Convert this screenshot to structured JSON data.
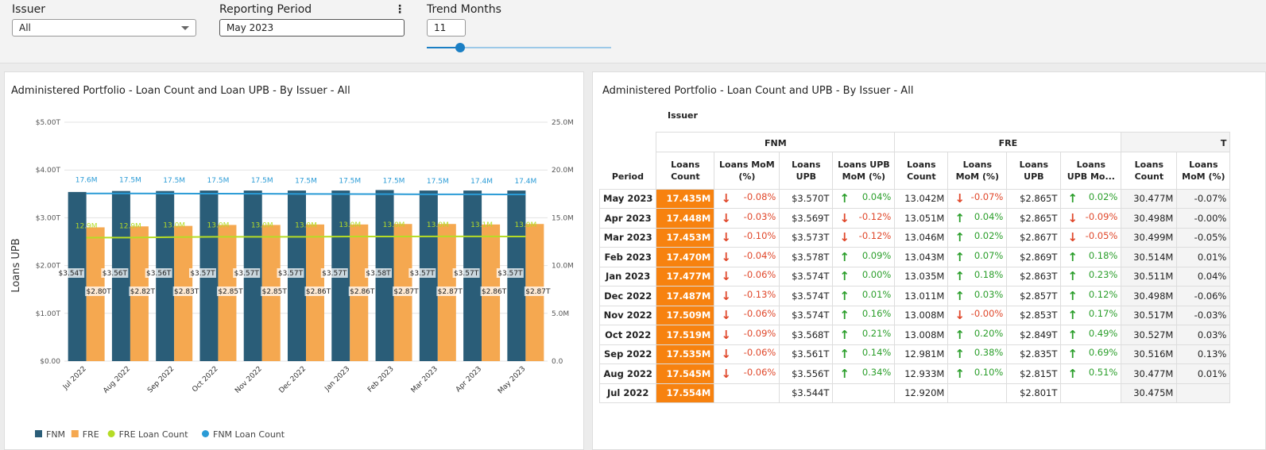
{
  "filters": {
    "issuer": {
      "label": "Issuer",
      "value": "All"
    },
    "period": {
      "label": "Reporting Period",
      "value": "May 2023"
    },
    "trend": {
      "label": "Trend Months",
      "value": "11",
      "slider_fraction": 0.18
    }
  },
  "left_panel": {
    "title": "Administered Portfolio - Loan Count and Loan UPB - By Issuer - All"
  },
  "right_panel": {
    "title": "Administered Portfolio - Loan Count and UPB - By Issuer - All",
    "issuer_label": "Issuer",
    "period_label": "Period",
    "groups": [
      "FNM",
      "FRE",
      "T"
    ],
    "columns": [
      "Loans Count",
      "Loans MoM (%)",
      "Loans UPB",
      "Loans UPB MoM (%)",
      "Loans Count",
      "Loans MoM (%)",
      "Loans UPB",
      "Loans UPB Mo...",
      "Loans Count",
      "Loans MoM (%)"
    ],
    "rows": [
      [
        "May 2023",
        "17.435M",
        "-0.08%",
        "$3.570T",
        "0.04%",
        "13.042M",
        "-0.07%",
        "$2.865T",
        "0.02%",
        "30.477M",
        "-0.07%"
      ],
      [
        "Apr 2023",
        "17.448M",
        "-0.03%",
        "$3.569T",
        "-0.12%",
        "13.051M",
        "0.04%",
        "$2.865T",
        "-0.09%",
        "30.498M",
        "-0.00%"
      ],
      [
        "Mar 2023",
        "17.453M",
        "-0.10%",
        "$3.573T",
        "-0.12%",
        "13.046M",
        "0.02%",
        "$2.867T",
        "-0.05%",
        "30.499M",
        "-0.05%"
      ],
      [
        "Feb 2023",
        "17.470M",
        "-0.04%",
        "$3.578T",
        "0.09%",
        "13.043M",
        "0.07%",
        "$2.869T",
        "0.18%",
        "30.514M",
        "0.01%"
      ],
      [
        "Jan 2023",
        "17.477M",
        "-0.06%",
        "$3.574T",
        "0.00%",
        "13.035M",
        "0.18%",
        "$2.863T",
        "0.23%",
        "30.511M",
        "0.04%"
      ],
      [
        "Dec 2022",
        "17.487M",
        "-0.13%",
        "$3.574T",
        "0.01%",
        "13.011M",
        "0.03%",
        "$2.857T",
        "0.12%",
        "30.498M",
        "-0.06%"
      ],
      [
        "Nov 2022",
        "17.509M",
        "-0.06%",
        "$3.574T",
        "0.16%",
        "13.008M",
        "-0.00%",
        "$2.853T",
        "0.17%",
        "30.517M",
        "-0.03%"
      ],
      [
        "Oct 2022",
        "17.519M",
        "-0.09%",
        "$3.568T",
        "0.21%",
        "13.008M",
        "0.20%",
        "$2.849T",
        "0.49%",
        "30.527M",
        "0.03%"
      ],
      [
        "Sep 2022",
        "17.535M",
        "-0.06%",
        "$3.561T",
        "0.14%",
        "12.981M",
        "0.38%",
        "$2.835T",
        "0.69%",
        "30.516M",
        "0.13%"
      ],
      [
        "Aug 2022",
        "17.545M",
        "-0.06%",
        "$3.556T",
        "0.34%",
        "12.933M",
        "0.10%",
        "$2.815T",
        "0.51%",
        "30.477M",
        "0.01%"
      ],
      [
        "Jul 2022",
        "17.554M",
        "",
        "$3.544T",
        "",
        "12.920M",
        "",
        "$2.801T",
        "",
        "30.475M",
        ""
      ]
    ]
  },
  "chart_data": {
    "type": "bar+line",
    "ylabel": "Loans UPB",
    "categories": [
      "Jul 2022",
      "Aug 2022",
      "Sep 2022",
      "Oct 2022",
      "Nov 2022",
      "Dec 2022",
      "Jan 2023",
      "Feb 2023",
      "Mar 2023",
      "Apr 2023",
      "May 2023"
    ],
    "yticks": [
      "$0.00",
      "$1.00T",
      "$2.00T",
      "$3.00T",
      "$4.00T",
      "$5.00T"
    ],
    "ylim": [
      0,
      5
    ],
    "y2ticks": [
      "0.0",
      "5.0M",
      "10.0M",
      "15.0M",
      "20.0M",
      "25.0M"
    ],
    "y2lim": [
      0,
      25
    ],
    "bars": [
      {
        "name": "FNM",
        "color": "#2a5d78",
        "values": [
          3.54,
          3.56,
          3.56,
          3.57,
          3.57,
          3.57,
          3.57,
          3.58,
          3.57,
          3.57,
          3.57
        ],
        "labels": [
          "$3.54T",
          "$3.56T",
          "$3.56T",
          "$3.57T",
          "$3.57T",
          "$3.57T",
          "$3.57T",
          "$3.58T",
          "$3.57T",
          "$3.57T",
          "$3.57T"
        ]
      },
      {
        "name": "FRE",
        "color": "#f5a850",
        "values": [
          2.8,
          2.82,
          2.83,
          2.85,
          2.85,
          2.86,
          2.86,
          2.87,
          2.87,
          2.86,
          2.87
        ],
        "labels": [
          "$2.80T",
          "$2.82T",
          "$2.83T",
          "$2.85T",
          "$2.85T",
          "$2.86T",
          "$2.86T",
          "$2.87T",
          "$2.87T",
          "$2.86T",
          "$2.87T"
        ]
      }
    ],
    "lines": [
      {
        "name": "FRE Loan Count",
        "color": "#b5dc26",
        "values": [
          12.92,
          12.93,
          12.98,
          13.01,
          13.01,
          13.01,
          13.04,
          13.04,
          13.05,
          13.05,
          13.04
        ],
        "labels": [
          "12.9M",
          "12.9M",
          "13.0M",
          "13.0M",
          "13.0M",
          "13.0M",
          "13.0M",
          "13.0M",
          "13.0M",
          "13.1M",
          "13.0M"
        ]
      },
      {
        "name": "FNM Loan Count",
        "color": "#2a9bd6",
        "values": [
          17.55,
          17.55,
          17.54,
          17.52,
          17.51,
          17.49,
          17.48,
          17.47,
          17.45,
          17.45,
          17.44
        ],
        "labels": [
          "17.6M",
          "17.5M",
          "17.5M",
          "17.5M",
          "17.5M",
          "17.5M",
          "17.5M",
          "17.5M",
          "17.5M",
          "17.4M",
          "17.4M"
        ]
      }
    ],
    "legend": "bottom-left",
    "grid": true
  }
}
